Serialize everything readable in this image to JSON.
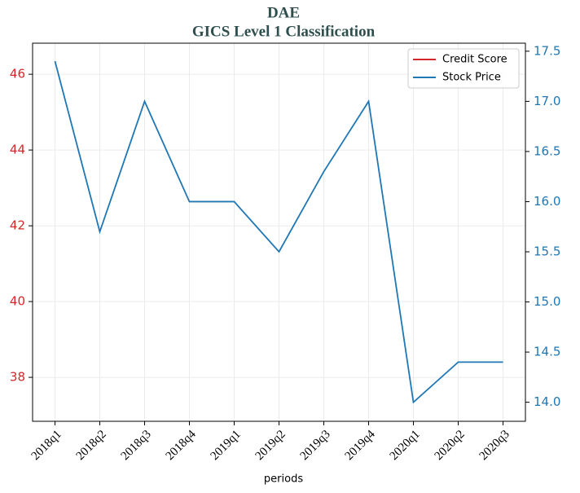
{
  "chart_data": {
    "type": "line",
    "title": "DAE",
    "subtitle": "GICS Level 1 Classification",
    "xlabel": "periods",
    "categories": [
      "2018q1",
      "2018q2",
      "2018q3",
      "2018q4",
      "2019q1",
      "2019q2",
      "2019q3",
      "2019q4",
      "2020q1",
      "2020q2",
      "2020q3"
    ],
    "series": [
      {
        "name": "Credit Score",
        "color": "#d62728",
        "values": [
          null,
          null,
          null,
          null,
          null,
          null,
          null,
          null,
          null,
          null,
          null
        ]
      },
      {
        "name": "Stock Price",
        "color": "#1f77b4",
        "axis": "y2",
        "values": [
          17.4,
          15.7,
          17.0,
          16.0,
          16.0,
          15.5,
          16.3,
          17.0,
          14.0,
          14.4,
          14.4
        ]
      }
    ],
    "ylim": [
      36.84,
      46.82
    ],
    "yticks": [
      38,
      40,
      42,
      44,
      46
    ],
    "y2lim": [
      13.81,
      17.58
    ],
    "y2ticks": [
      {
        "value": 14,
        "label": "14.0"
      },
      14.5,
      {
        "value": 15,
        "label": "15.0"
      },
      15.5,
      {
        "value": 16,
        "label": "16.0"
      },
      16.5,
      {
        "value": 17,
        "label": "17.0"
      },
      17.5
    ],
    "grid": true,
    "legend": "upper right"
  }
}
